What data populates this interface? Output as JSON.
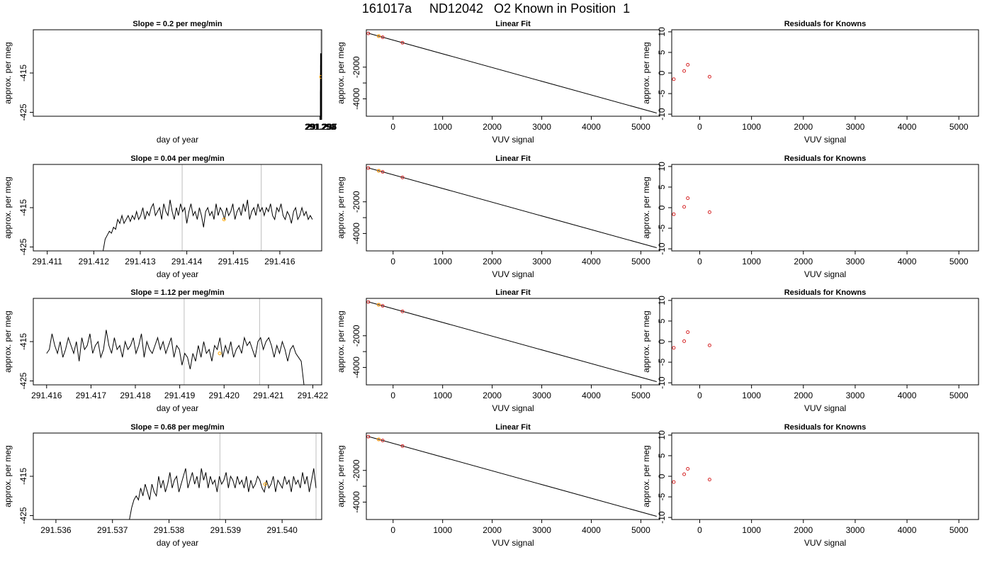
{
  "title": "161017a     ND12042   O2 Known in Position  1",
  "colors": {
    "line": "#000000",
    "marker_orange": "#ffa500",
    "marker_red": "#d62728",
    "vline": "#bebebe",
    "fit_point": "#d62728"
  },
  "chart_data": [
    {
      "type": "line",
      "row": 0,
      "col": 0,
      "title": "Slope =  0.2  per meg/min",
      "xlabel": "day of year",
      "ylabel": "approx. per meg",
      "xlim": [
        290.2909,
        291.2971
      ],
      "ylim": [
        -426,
        -404
      ],
      "xticks": [
        291.291,
        291.292,
        291.293,
        291.294,
        291.295,
        291.296,
        291.297
      ],
      "xtick_labels": [
        "291.291",
        "291.292",
        "291.293",
        "291.294",
        "291.295",
        "291.296",
        "291.297"
      ],
      "yticks": [
        -425,
        -415
      ],
      "ytick_labels": [
        "-425",
        "-415"
      ],
      "vlines": [
        291.2941,
        291.2958
      ],
      "marker": {
        "x": 291.2949,
        "y": -416
      },
      "series": [
        {
          "x_start": 291.2924,
          "x_end": 291.2967,
          "values": [
            -426,
            -422,
            -420,
            -419,
            -419.5,
            -418.5,
            -418,
            -418.5,
            -415,
            -417,
            -413,
            -414.5,
            -413,
            -418,
            -415,
            -412,
            -414,
            -413,
            -417,
            -414,
            -410,
            -413,
            -415,
            -412,
            -414,
            -411,
            -416,
            -413,
            -414,
            -411,
            -417,
            -413,
            -415,
            -414,
            -412,
            -417,
            -416,
            -413,
            -414,
            -412,
            -417,
            -415,
            -413,
            -416,
            -412,
            -416,
            -413,
            -415,
            -414,
            -410,
            -413,
            -416,
            -414,
            -412,
            -415,
            -417,
            -426,
            -418,
            -415,
            -416,
            -414,
            -413,
            -416,
            -414,
            -413,
            -415,
            -414,
            -412,
            -416,
            -415,
            -414,
            -416,
            -413,
            -415,
            -413,
            -414,
            -416,
            -417,
            -414,
            -412,
            -414,
            -415,
            -413,
            -416,
            -414,
            -413,
            -415,
            -414,
            -412,
            -414,
            -413,
            -415,
            -416,
            -413,
            -411,
            -414,
            -416,
            -415,
            -414,
            -417,
            -426
          ]
        }
      ]
    },
    {
      "type": "line",
      "row": 0,
      "col": 1,
      "title": "Linear Fit",
      "xlabel": "VUV signal",
      "ylabel": "approx. per meg",
      "xlim": [
        -540,
        5380
      ],
      "ylim": [
        -5100,
        360
      ],
      "xticks": [
        0,
        1000,
        2000,
        3000,
        4000,
        5000
      ],
      "xtick_labels": [
        "0",
        "1000",
        "2000",
        "3000",
        "4000",
        "5000"
      ],
      "yticks": [
        -4000,
        -3000,
        -2000
      ],
      "ytick_labels": [
        "-4000",
        "",
        "-2000"
      ],
      "fit_line": {
        "x": [
          -500,
          5320
        ],
        "y": [
          140,
          -4900
        ]
      },
      "points": [
        {
          "x": -500,
          "y": 130
        },
        {
          "x": -290,
          "y": -40
        },
        {
          "x": -210,
          "y": -110
        },
        {
          "x": 190,
          "y": -460
        }
      ],
      "orange_point": {
        "x": -290,
        "y": -40
      }
    },
    {
      "type": "scatter",
      "row": 0,
      "col": 2,
      "title": "Residuals for Knowns",
      "xlabel": "VUV signal",
      "ylabel": "approx. per meg",
      "xlim": [
        -540,
        5380
      ],
      "ylim": [
        -10.5,
        10.5
      ],
      "xticks": [
        0,
        1000,
        2000,
        3000,
        4000,
        5000
      ],
      "xtick_labels": [
        "0",
        "1000",
        "2000",
        "3000",
        "4000",
        "5000"
      ],
      "yticks": [
        -10,
        -5,
        0,
        5,
        10
      ],
      "ytick_labels": [
        "-10",
        "-5",
        "0",
        "5",
        "10"
      ],
      "points": [
        {
          "x": -500,
          "y": -1.5
        },
        {
          "x": -300,
          "y": 0.5
        },
        {
          "x": -230,
          "y": 2.0
        },
        {
          "x": 190,
          "y": -0.9
        }
      ]
    },
    {
      "type": "line",
      "row": 1,
      "col": 0,
      "title": "Slope =  0.04  per meg/min",
      "xlabel": "day of year",
      "ylabel": "approx. per meg",
      "xlim": [
        291.4107,
        291.4169
      ],
      "ylim": [
        -426,
        -404
      ],
      "xticks": [
        291.411,
        291.412,
        291.413,
        291.414,
        291.415,
        291.416
      ],
      "xtick_labels": [
        "291.411",
        "291.412",
        "291.413",
        "291.414",
        "291.415",
        "291.416"
      ],
      "yticks": [
        -425,
        -415
      ],
      "ytick_labels": [
        "-425",
        "-415"
      ],
      "vlines": [
        291.4139,
        291.4156
      ],
      "marker": {
        "x": 291.4148,
        "y": -418
      },
      "series": [
        {
          "x_start": 291.4122,
          "x_end": 291.4167,
          "values": [
            -426,
            -423,
            -422,
            -421,
            -421.5,
            -420,
            -420.5,
            -418,
            -419,
            -417,
            -419,
            -418,
            -417,
            -418.5,
            -417,
            -418,
            -416,
            -418,
            -417,
            -415,
            -418,
            -416,
            -417,
            -415,
            -414,
            -417,
            -416,
            -415,
            -418,
            -414,
            -416,
            -417,
            -413,
            -416,
            -418,
            -415,
            -417,
            -414,
            -416,
            -415,
            -419,
            -416,
            -414,
            -417,
            -416,
            -418,
            -415,
            -417,
            -420,
            -416,
            -415,
            -417,
            -416,
            -418,
            -414,
            -417,
            -415,
            -416,
            -418,
            -415,
            -417,
            -416,
            -414,
            -418,
            -416,
            -415,
            -417,
            -414,
            -416,
            -413,
            -418,
            -416,
            -415,
            -417,
            -414,
            -416,
            -415,
            -417,
            -415,
            -416,
            -414,
            -417,
            -418,
            -415,
            -416,
            -414,
            -417,
            -418,
            -416,
            -417,
            -419,
            -416,
            -415,
            -418,
            -417,
            -415,
            -417,
            -416,
            -418,
            -417,
            -418
          ]
        }
      ]
    },
    {
      "type": "line",
      "row": 1,
      "col": 1,
      "title": "Linear Fit",
      "xlabel": "VUV signal",
      "ylabel": "approx. per meg",
      "xlim": [
        -540,
        5380
      ],
      "ylim": [
        -5100,
        360
      ],
      "xticks": [
        0,
        1000,
        2000,
        3000,
        4000,
        5000
      ],
      "xtick_labels": [
        "0",
        "1000",
        "2000",
        "3000",
        "4000",
        "5000"
      ],
      "yticks": [
        -4000,
        -3000,
        -2000
      ],
      "ytick_labels": [
        "-4000",
        "",
        "-2000"
      ],
      "fit_line": {
        "x": [
          -500,
          5320
        ],
        "y": [
          140,
          -4900
        ]
      },
      "points": [
        {
          "x": -500,
          "y": 130
        },
        {
          "x": -290,
          "y": -40
        },
        {
          "x": -210,
          "y": -110
        },
        {
          "x": 190,
          "y": -460
        }
      ],
      "orange_point": {
        "x": -290,
        "y": -40
      }
    },
    {
      "type": "scatter",
      "row": 1,
      "col": 2,
      "title": "Residuals for Knowns",
      "xlabel": "VUV signal",
      "ylabel": "approx. per meg",
      "xlim": [
        -540,
        5380
      ],
      "ylim": [
        -10.5,
        10.5
      ],
      "xticks": [
        0,
        1000,
        2000,
        3000,
        4000,
        5000
      ],
      "xtick_labels": [
        "0",
        "1000",
        "2000",
        "3000",
        "4000",
        "5000"
      ],
      "yticks": [
        -10,
        -5,
        0,
        5,
        10
      ],
      "ytick_labels": [
        "-10",
        "-5",
        "0",
        "5",
        "10"
      ],
      "points": [
        {
          "x": -500,
          "y": -1.6
        },
        {
          "x": -300,
          "y": 0.2
        },
        {
          "x": -230,
          "y": 2.3
        },
        {
          "x": 190,
          "y": -1.1
        }
      ]
    },
    {
      "type": "line",
      "row": 2,
      "col": 0,
      "title": "Slope =  1.12  per meg/min",
      "xlabel": "day of year",
      "ylabel": "approx. per meg",
      "xlim": [
        291.4157,
        291.4222
      ],
      "ylim": [
        -426,
        -404
      ],
      "xticks": [
        291.416,
        291.417,
        291.418,
        291.419,
        291.42,
        291.421,
        291.422
      ],
      "xtick_labels": [
        "291.416",
        "291.417",
        "291.418",
        "291.419",
        "291.420",
        "291.421",
        "291.422"
      ],
      "yticks": [
        -425,
        -415
      ],
      "ytick_labels": [
        "-425",
        "-415"
      ],
      "vlines": [
        291.4191,
        291.4208
      ],
      "marker": {
        "x": 291.4199,
        "y": -418
      },
      "series": [
        {
          "x_start": 291.416,
          "x_end": 291.4218,
          "values": [
            -418,
            -417,
            -413,
            -416,
            -418,
            -415,
            -419,
            -417,
            -414,
            -416,
            -418,
            -415,
            -420,
            -414,
            -417,
            -416,
            -413,
            -418,
            -416,
            -415,
            -419,
            -417,
            -412,
            -416,
            -418,
            -414,
            -417,
            -416,
            -419,
            -415,
            -417,
            -416,
            -414,
            -418,
            -416,
            -413,
            -419,
            -415,
            -417,
            -418,
            -416,
            -414,
            -417,
            -415,
            -418,
            -416,
            -414,
            -419,
            -416,
            -417,
            -421,
            -418,
            -419,
            -422,
            -418,
            -420,
            -416,
            -419,
            -415,
            -418,
            -417,
            -420,
            -416,
            -417,
            -414,
            -419,
            -416,
            -418,
            -415,
            -419,
            -417,
            -416,
            -418,
            -414,
            -416,
            -415,
            -417,
            -419,
            -415,
            -414,
            -417,
            -415,
            -414,
            -416,
            -419,
            -416,
            -418,
            -415,
            -417,
            -420,
            -417,
            -416,
            -418,
            -419,
            -420,
            -426
          ]
        }
      ]
    },
    {
      "type": "line",
      "row": 2,
      "col": 1,
      "title": "Linear Fit",
      "xlabel": "VUV signal",
      "ylabel": "approx. per meg",
      "xlim": [
        -540,
        5380
      ],
      "ylim": [
        -5100,
        360
      ],
      "xticks": [
        0,
        1000,
        2000,
        3000,
        4000,
        5000
      ],
      "xtick_labels": [
        "0",
        "1000",
        "2000",
        "3000",
        "4000",
        "5000"
      ],
      "yticks": [
        -4000,
        -3000,
        -2000
      ],
      "ytick_labels": [
        "-4000",
        "",
        "-2000"
      ],
      "fit_line": {
        "x": [
          -500,
          5320
        ],
        "y": [
          140,
          -4900
        ]
      },
      "points": [
        {
          "x": -500,
          "y": 130
        },
        {
          "x": -290,
          "y": -40
        },
        {
          "x": -210,
          "y": -110
        },
        {
          "x": 190,
          "y": -460
        }
      ],
      "orange_point": {
        "x": -290,
        "y": -40
      }
    },
    {
      "type": "scatter",
      "row": 2,
      "col": 2,
      "title": "Residuals for Knowns",
      "xlabel": "VUV signal",
      "ylabel": "approx. per meg",
      "xlim": [
        -540,
        5380
      ],
      "ylim": [
        -10.5,
        10.5
      ],
      "xticks": [
        0,
        1000,
        2000,
        3000,
        4000,
        5000
      ],
      "xtick_labels": [
        "0",
        "1000",
        "2000",
        "3000",
        "4000",
        "5000"
      ],
      "yticks": [
        -10,
        -5,
        0,
        5,
        10
      ],
      "ytick_labels": [
        "-10",
        "-5",
        "0",
        "5",
        "10"
      ],
      "points": [
        {
          "x": -500,
          "y": -1.5
        },
        {
          "x": -300,
          "y": 0.1
        },
        {
          "x": -230,
          "y": 2.3
        },
        {
          "x": 190,
          "y": -0.9
        }
      ]
    },
    {
      "type": "line",
      "row": 3,
      "col": 0,
      "title": "Slope =  0.68  per meg/min",
      "xlabel": "day of year",
      "ylabel": "approx. per meg",
      "xlim": [
        291.5356,
        291.5407
      ],
      "ylim": [
        -426,
        -404
      ],
      "xticks": [
        291.536,
        291.537,
        291.538,
        291.539,
        291.54
      ],
      "xtick_labels": [
        "291.536",
        "291.537",
        "291.538",
        "291.539",
        "291.540"
      ],
      "yticks": [
        -425,
        -415
      ],
      "ytick_labels": [
        "-425",
        "-415"
      ],
      "vlines": [
        291.5389,
        291.5406
      ],
      "marker": {
        "x": 291.5397,
        "y": -417
      },
      "series": [
        {
          "x_start": 291.5373,
          "x_end": 291.5406,
          "values": [
            -426,
            -423,
            -421,
            -420,
            -421,
            -418,
            -420,
            -417,
            -419,
            -421,
            -417,
            -419,
            -420,
            -415,
            -418,
            -416,
            -419,
            -417,
            -414,
            -418,
            -416,
            -415,
            -419,
            -417,
            -415,
            -413,
            -418,
            -416,
            -414,
            -417,
            -415,
            -418,
            -413,
            -416,
            -414,
            -418,
            -415,
            -417,
            -416,
            -419,
            -415,
            -417,
            -416,
            -414,
            -418,
            -415,
            -416,
            -418,
            -415,
            -417,
            -416,
            -418,
            -415,
            -419,
            -416,
            -418,
            -417,
            -415,
            -416,
            -418,
            -419,
            -416,
            -418,
            -417,
            -415,
            -419,
            -416,
            -417,
            -418,
            -415,
            -417,
            -416,
            -419,
            -415,
            -417,
            -416,
            -418,
            -414,
            -417,
            -415,
            -419,
            -416,
            -413,
            -418
          ]
        }
      ]
    },
    {
      "type": "line",
      "row": 3,
      "col": 1,
      "title": "Linear Fit",
      "xlabel": "VUV signal",
      "ylabel": "approx. per meg",
      "xlim": [
        -540,
        5380
      ],
      "ylim": [
        -5100,
        360
      ],
      "xticks": [
        0,
        1000,
        2000,
        3000,
        4000,
        5000
      ],
      "xtick_labels": [
        "0",
        "1000",
        "2000",
        "3000",
        "4000",
        "5000"
      ],
      "yticks": [
        -4000,
        -3000,
        -2000
      ],
      "ytick_labels": [
        "-4000",
        "",
        "-2000"
      ],
      "fit_line": {
        "x": [
          -500,
          5320
        ],
        "y": [
          140,
          -4900
        ]
      },
      "points": [
        {
          "x": -500,
          "y": 130
        },
        {
          "x": -290,
          "y": -40
        },
        {
          "x": -210,
          "y": -110
        },
        {
          "x": 190,
          "y": -460
        }
      ],
      "orange_point": {
        "x": -290,
        "y": -40
      }
    },
    {
      "type": "scatter",
      "row": 3,
      "col": 2,
      "title": "Residuals for Knowns",
      "xlabel": "VUV signal",
      "ylabel": "approx. per meg",
      "xlim": [
        -540,
        5380
      ],
      "ylim": [
        -10.5,
        10.5
      ],
      "xticks": [
        0,
        1000,
        2000,
        3000,
        4000,
        5000
      ],
      "xtick_labels": [
        "0",
        "1000",
        "2000",
        "3000",
        "4000",
        "5000"
      ],
      "yticks": [
        -10,
        -5,
        0,
        5,
        10
      ],
      "ytick_labels": [
        "-10",
        "-5",
        "0",
        "5",
        "10"
      ],
      "points": [
        {
          "x": -500,
          "y": -1.4
        },
        {
          "x": -300,
          "y": 0.5
        },
        {
          "x": -230,
          "y": 1.8
        },
        {
          "x": 190,
          "y": -0.8
        }
      ]
    }
  ]
}
